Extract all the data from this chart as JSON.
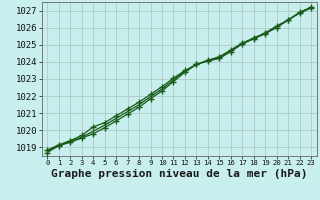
{
  "title": "Graphe pression niveau de la mer (hPa)",
  "background_color": "#c8eeee",
  "plot_bg_color": "#c8eeee",
  "grid_color": "#b0c8c8",
  "line_color": "#1a5c1a",
  "marker_color": "#1a5c1a",
  "ylim": [
    1018.5,
    1027.5
  ],
  "xlim": [
    -0.5,
    23.5
  ],
  "yticks": [
    1019,
    1020,
    1021,
    1022,
    1023,
    1024,
    1025,
    1026,
    1027
  ],
  "xticks": [
    0,
    1,
    2,
    3,
    4,
    5,
    6,
    7,
    8,
    9,
    10,
    11,
    12,
    13,
    14,
    15,
    16,
    17,
    18,
    19,
    20,
    21,
    22,
    23
  ],
  "series1": [
    1018.7,
    1019.1,
    1019.3,
    1019.55,
    1019.8,
    1020.15,
    1020.55,
    1020.95,
    1021.35,
    1021.85,
    1022.3,
    1022.85,
    1023.4,
    1023.85,
    1024.05,
    1024.2,
    1024.6,
    1025.05,
    1025.35,
    1025.65,
    1026.0,
    1026.45,
    1026.85,
    1027.15
  ],
  "series2": [
    1018.85,
    1019.15,
    1019.4,
    1019.7,
    1020.2,
    1020.45,
    1020.85,
    1021.25,
    1021.65,
    1022.1,
    1022.55,
    1023.05,
    1023.5,
    1023.85,
    1024.1,
    1024.3,
    1024.7,
    1025.1,
    1025.4,
    1025.7,
    1026.1,
    1026.45,
    1026.9,
    1027.2
  ],
  "series3": [
    1018.8,
    1019.13,
    1019.35,
    1019.6,
    1019.95,
    1020.3,
    1020.7,
    1021.1,
    1021.5,
    1021.97,
    1022.42,
    1022.95,
    1023.45,
    1023.85,
    1024.08,
    1024.25,
    1024.65,
    1025.07,
    1025.37,
    1025.67,
    1026.05,
    1026.45,
    1026.87,
    1027.17
  ],
  "title_fontsize": 8,
  "tick_fontsize": 6.5
}
